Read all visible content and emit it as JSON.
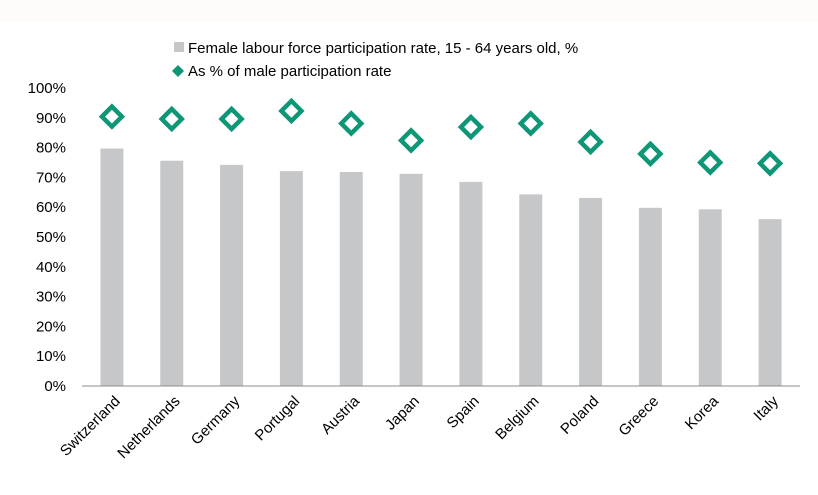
{
  "chart_data": {
    "type": "bar",
    "categories": [
      "Switzerland",
      "Netherlands",
      "Germany",
      "Portugal",
      "Austria",
      "Japan",
      "Spain",
      "Belgium",
      "Poland",
      "Greece",
      "Korea",
      "Italy"
    ],
    "series": [
      {
        "name": "Female labour force participation rate, 15 - 64 years old, %",
        "type": "bar",
        "values": [
          79.7,
          75.6,
          74.2,
          72.1,
          71.8,
          71.2,
          68.5,
          64.3,
          63.1,
          59.8,
          59.3,
          56.0
        ],
        "color": "#c6c7c9"
      },
      {
        "name": "As % of male participation rate",
        "type": "scatter",
        "marker": "diamond",
        "values": [
          90.4,
          89.6,
          89.6,
          92.3,
          88.1,
          82.4,
          86.9,
          88.1,
          81.9,
          77.9,
          75.0,
          74.7
        ],
        "color": "#0d9777"
      }
    ],
    "y_ticks": [
      "0%",
      "10%",
      "20%",
      "30%",
      "40%",
      "50%",
      "60%",
      "70%",
      "80%",
      "90%",
      "100%"
    ],
    "ylim": [
      0,
      100
    ],
    "grid": false,
    "legend_position": "top-center",
    "title": "",
    "xlabel": "",
    "ylabel": ""
  }
}
